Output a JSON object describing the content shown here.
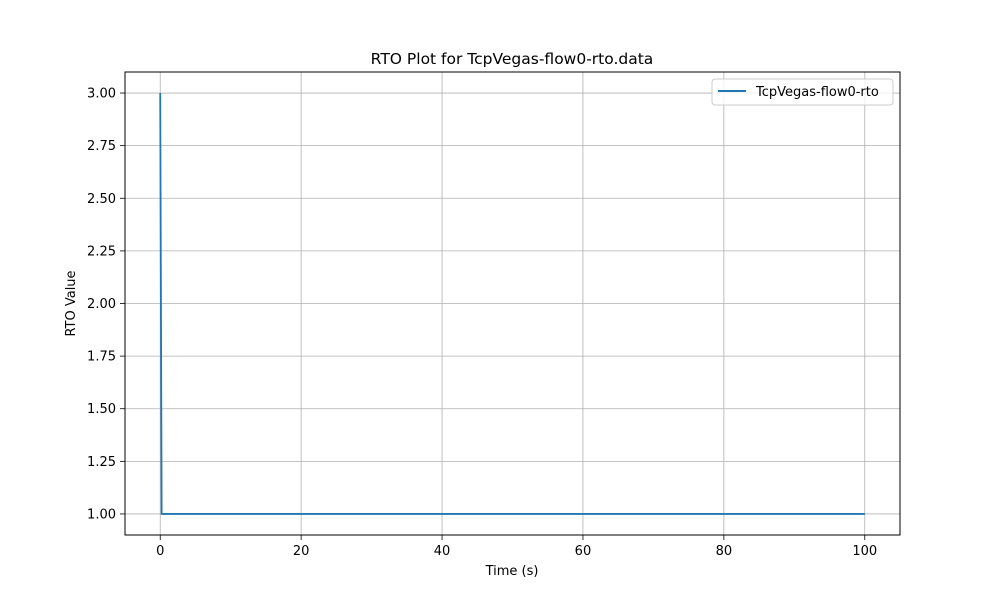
{
  "chart_data": {
    "type": "line",
    "title": "RTO Plot for TcpVegas-flow0-rto.data",
    "xlabel": "Time (s)",
    "ylabel": "RTO Value",
    "xlim": [
      -5,
      105
    ],
    "ylim": [
      0.9,
      3.1
    ],
    "xticks": [
      0,
      20,
      40,
      60,
      80,
      100
    ],
    "yticks": [
      1.0,
      1.25,
      1.5,
      1.75,
      2.0,
      2.25,
      2.5,
      2.75,
      3.0
    ],
    "xtick_labels": [
      "0",
      "20",
      "40",
      "60",
      "80",
      "100"
    ],
    "ytick_labels": [
      "1.00",
      "1.25",
      "1.50",
      "1.75",
      "2.00",
      "2.25",
      "2.50",
      "2.75",
      "3.00"
    ],
    "grid": true,
    "legend_position": "top-right",
    "series": [
      {
        "name": "TcpVegas-flow0-rto",
        "color": "#1f77b4",
        "x": [
          0,
          0.2,
          100
        ],
        "y": [
          3.0,
          1.0,
          1.0
        ]
      }
    ]
  }
}
